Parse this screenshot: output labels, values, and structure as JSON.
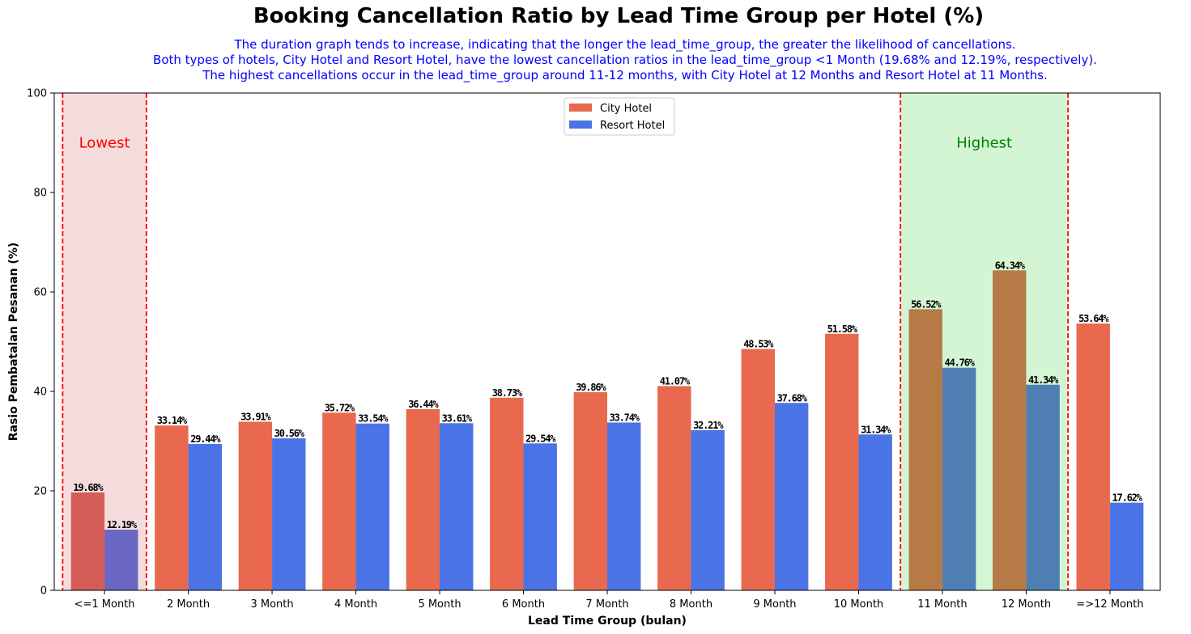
{
  "chart_data": {
    "type": "bar",
    "title": "Booking Cancellation Ratio by Lead Time Group per Hotel (%)",
    "subtitle_lines": [
      "The duration graph tends to increase, indicating that the longer the lead_time_group, the greater the likelihood of cancellations.",
      "Both types of hotels, City Hotel and Resort Hotel, have the lowest cancellation ratios in the lead_time_group <1 Month (19.68% and 12.19%, respectively).",
      "The highest cancellations occur in the lead_time_group around 11-12 months, with City Hotel at 12 Months and Resort Hotel at 11 Months."
    ],
    "xlabel": "Lead Time Group (bulan)",
    "ylabel": "Rasio Pembatalan Pesanan (%)",
    "ylim": [
      0,
      100
    ],
    "yticks": [
      "0",
      "20",
      "40",
      "60",
      "80",
      "100"
    ],
    "categories": [
      "<=1 Month",
      "2 Month",
      "3 Month",
      "4 Month",
      "5 Month",
      "6 Month",
      "7 Month",
      "8 Month",
      "9 Month",
      "10 Month",
      "11 Month",
      "12 Month",
      "=>12 Month"
    ],
    "series": [
      {
        "name": "City Hotel",
        "color": "#e8694d",
        "values": [
          19.68,
          33.14,
          33.91,
          35.72,
          36.44,
          38.73,
          39.86,
          41.07,
          48.53,
          51.58,
          56.52,
          64.34,
          53.64
        ],
        "labels": [
          "19.68%",
          "33.14%",
          "33.91%",
          "35.72%",
          "36.44%",
          "38.73%",
          "39.86%",
          "41.07%",
          "48.53%",
          "51.58%",
          "56.52%",
          "64.34%",
          "53.64%"
        ]
      },
      {
        "name": "Resort Hotel",
        "color": "#4a74e6",
        "values": [
          12.19,
          29.44,
          30.56,
          33.54,
          33.61,
          29.54,
          33.74,
          32.21,
          37.68,
          31.34,
          44.76,
          41.34,
          17.62
        ],
        "labels": [
          "12.19%",
          "29.44%",
          "30.56%",
          "33.54%",
          "33.61%",
          "29.54%",
          "33.74%",
          "32.21%",
          "37.68%",
          "31.34%",
          "44.76%",
          "41.34%",
          "17.62%"
        ]
      }
    ],
    "legend_position": "top-center",
    "grid": false,
    "highlight_regions": [
      {
        "label": "Lowest",
        "label_color": "#ff0000",
        "fill": "#f5dcdc",
        "categories": [
          0
        ],
        "border_color": "#ff0000"
      },
      {
        "label": "Highest",
        "label_color": "#008000",
        "fill": "#d4f5d4",
        "categories": [
          10,
          11
        ],
        "border_color": "#ff0000"
      }
    ]
  }
}
